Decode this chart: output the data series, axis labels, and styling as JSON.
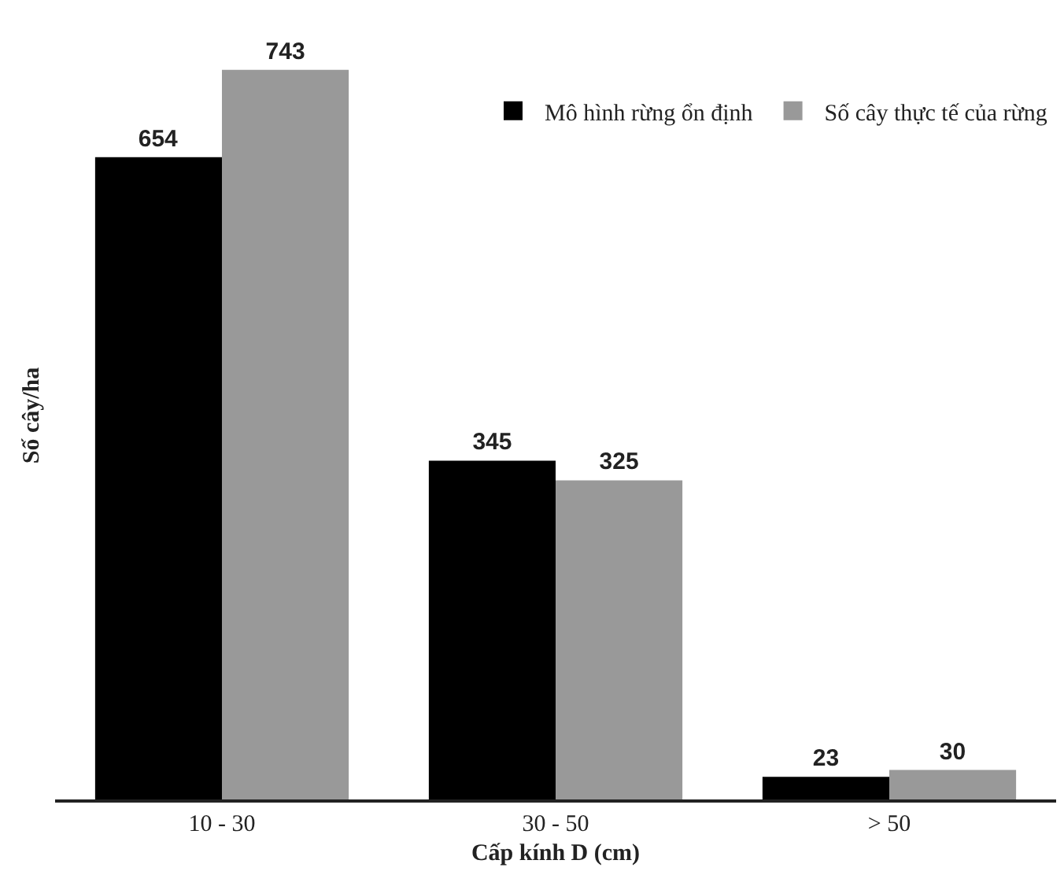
{
  "chart_data": {
    "type": "bar",
    "xlabel": "Cấp kính D (cm)",
    "ylabel": "Số cây/ha",
    "categories": [
      "10 - 30",
      "30 - 50",
      "> 50"
    ],
    "series": [
      {
        "name": "Mô hình rừng ổn định",
        "color": "#000000",
        "values": [
          654,
          345,
          23
        ]
      },
      {
        "name": "Số cây thực tế của rừng",
        "color": "#999999",
        "values": [
          743,
          325,
          30
        ]
      }
    ],
    "data_labels": true,
    "legend": "top right"
  }
}
